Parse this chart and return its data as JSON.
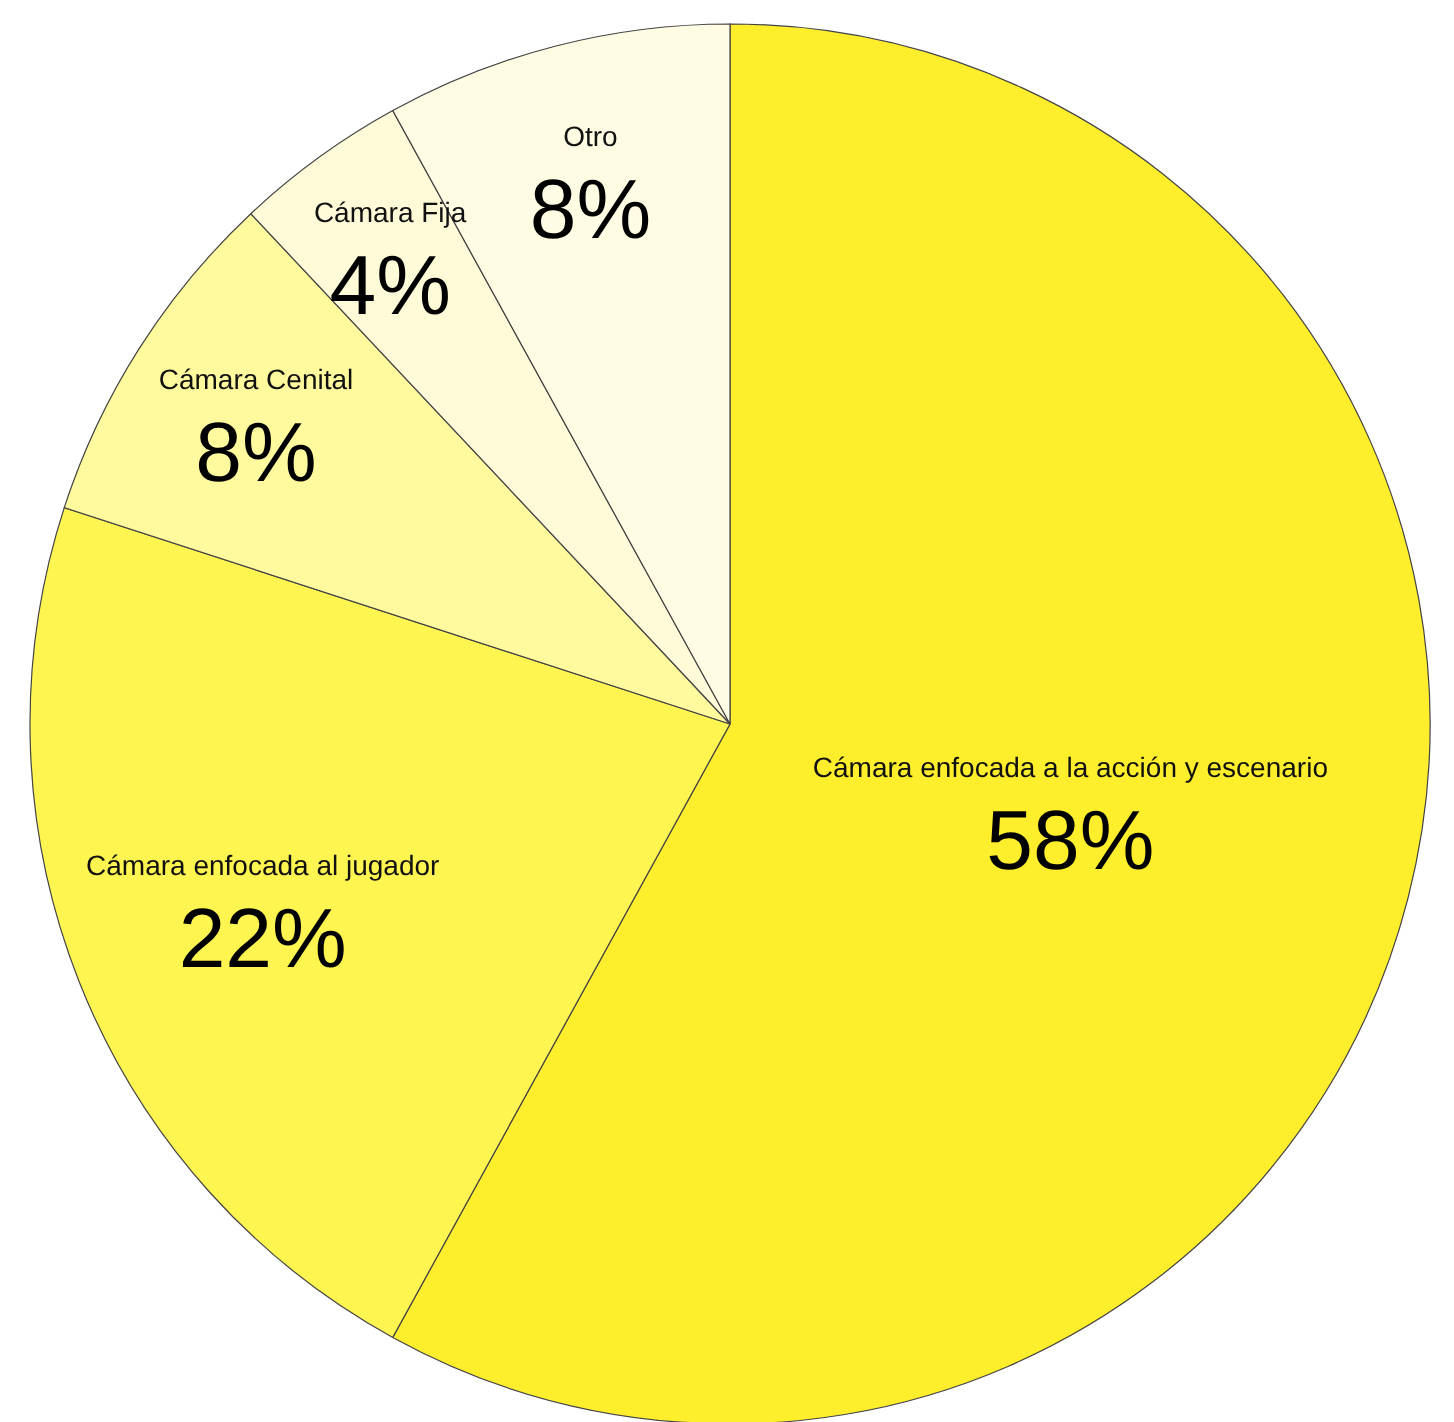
{
  "chart_data": {
    "type": "pie",
    "categories": [
      "Cámara enfocada a la acción y escenario",
      "Cámara enfocada al jugador",
      "Cámara Cenital",
      "Cámara Fija",
      "Otro"
    ],
    "values": [
      58,
      22,
      8,
      4,
      8
    ],
    "colors": [
      "#ffee2b",
      "#fff550",
      "#fffa9e",
      "#fffad8",
      "#fffce3"
    ],
    "value_labels": [
      "58%",
      "22%",
      "8%",
      "4%",
      "8%"
    ]
  }
}
